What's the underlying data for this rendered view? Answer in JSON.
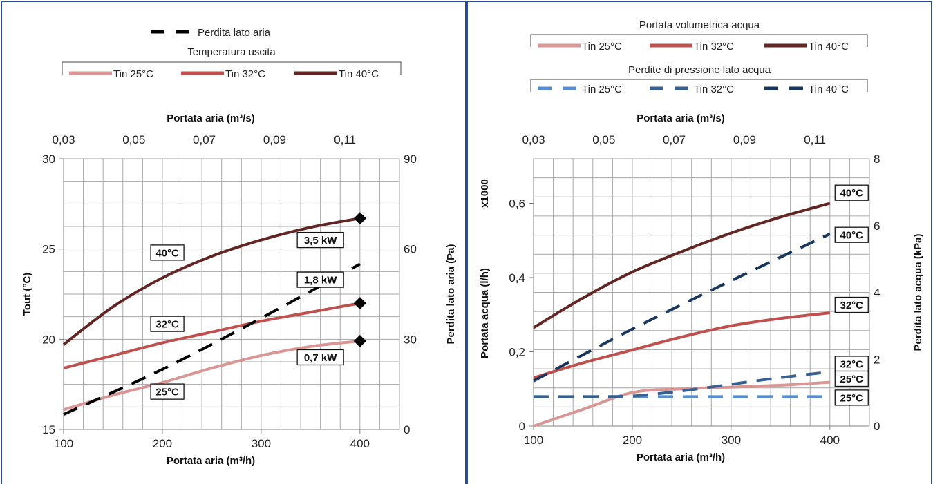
{
  "chart_data": [
    {
      "type": "line",
      "panel": "left",
      "xlabel": "Portata aria (m³/h)",
      "x2label": "Portata aria (m³/s)",
      "ylabel": "Tout (°C)",
      "y2label": "Perdita lato aria (Pa)",
      "xlim": [
        100,
        440
      ],
      "ylim": [
        15,
        30
      ],
      "y2lim": [
        0,
        90
      ],
      "x_ticks": [
        100,
        200,
        300,
        400
      ],
      "x_tick_labels": [
        "100",
        "200",
        "300",
        "400"
      ],
      "y_ticks": [
        15,
        20,
        25,
        30
      ],
      "y_tick_labels": [
        "15",
        "20",
        "25",
        "30"
      ],
      "y2_ticks": [
        0,
        30,
        60,
        90
      ],
      "y2_tick_labels": [
        "0",
        "30",
        "60",
        "90"
      ],
      "x2_ticks": [
        0.03,
        0.05,
        0.07,
        0.09,
        0.11
      ],
      "x2_tick_labels": [
        "0,03",
        "0,05",
        "0,07",
        "0,09",
        "0,11"
      ],
      "legend": {
        "top_entry": "Perdita lato aria",
        "group_title": "Temperatura uscita",
        "entries": [
          "Tin 25°C",
          "Tin 32°C",
          "Tin 40°C"
        ]
      },
      "series": [
        {
          "name": "Tin 25°C",
          "axis": "left",
          "color": "#d99694",
          "dash": false,
          "x": [
            100,
            150,
            200,
            250,
            300,
            350,
            400
          ],
          "y": [
            16.1,
            16.9,
            17.6,
            18.4,
            19.1,
            19.6,
            19.9
          ]
        },
        {
          "name": "Tin 32°C",
          "axis": "left",
          "color": "#c0504d",
          "dash": false,
          "x": [
            100,
            150,
            200,
            250,
            300,
            350,
            400
          ],
          "y": [
            18.4,
            19.1,
            19.8,
            20.4,
            21.0,
            21.5,
            22.0
          ]
        },
        {
          "name": "Tin 40°C",
          "axis": "left",
          "color": "#632523",
          "dash": false,
          "x": [
            100,
            150,
            200,
            250,
            300,
            350,
            400
          ],
          "y": [
            19.7,
            21.8,
            23.4,
            24.6,
            25.5,
            26.2,
            26.7
          ]
        },
        {
          "name": "Perdita lato aria",
          "axis": "right",
          "color": "#000000",
          "dash": true,
          "x": [
            100,
            200,
            300,
            400
          ],
          "y": [
            5,
            20,
            37,
            55
          ]
        }
      ],
      "markers": [
        {
          "x": 400,
          "y": 26.7
        },
        {
          "x": 400,
          "y": 22.0
        },
        {
          "x": 400,
          "y": 19.9
        }
      ],
      "annotations": [
        {
          "text": "40°C",
          "x": 205,
          "y": 24.8
        },
        {
          "text": "32°C",
          "x": 205,
          "y": 20.85
        },
        {
          "text": "25°C",
          "x": 205,
          "y": 17.1
        },
        {
          "text": "3,5 kW",
          "x": 360,
          "y": 25.5
        },
        {
          "text": "1,8 kW",
          "x": 360,
          "y": 23.3
        },
        {
          "text": "0,7 kW",
          "x": 360,
          "y": 19.0
        }
      ]
    },
    {
      "type": "line",
      "panel": "right",
      "xlabel": "Portata aria (m³/h)",
      "x2label": "Portata aria (m³/s)",
      "ylabel": "Portata acqua (l/h)",
      "ylabel_multiplier": "x1000",
      "y2label": "Perdita lato acqua (kPa)",
      "xlim": [
        100,
        440
      ],
      "ylim": [
        0,
        0.72
      ],
      "y2lim": [
        0,
        8
      ],
      "x_ticks": [
        100,
        200,
        300,
        400
      ],
      "x_tick_labels": [
        "100",
        "200",
        "300",
        "400"
      ],
      "y_ticks": [
        0,
        0.2,
        0.4,
        0.6
      ],
      "y_tick_labels": [
        "0",
        "0,2",
        "0,4",
        "0,6"
      ],
      "y2_ticks": [
        0,
        2,
        4,
        6,
        8
      ],
      "y2_tick_labels": [
        "0",
        "2",
        "4",
        "6",
        "8"
      ],
      "x2_ticks": [
        0.03,
        0.05,
        0.07,
        0.09,
        0.11
      ],
      "x2_tick_labels": [
        "0,03",
        "0,05",
        "0,07",
        "0,09",
        "0,11"
      ],
      "legend": {
        "group1_title": "Portata volumetrica acqua",
        "group1_entries": [
          "Tin 25°C",
          "Tin 32°C",
          "Tin 40°C"
        ],
        "group2_title": "Perdite di pressione lato acqua",
        "group2_entries": [
          "Tin 25°C",
          "Tin 32°C",
          "Tin 40°C"
        ]
      },
      "series": [
        {
          "name": "Tin 25°C",
          "group": "Portata volumetrica acqua",
          "axis": "left",
          "color": "#d99694",
          "dash": false,
          "x": [
            100,
            150,
            200,
            250,
            300,
            350,
            400
          ],
          "y": [
            0.0,
            0.045,
            0.09,
            0.1,
            0.105,
            0.11,
            0.118
          ]
        },
        {
          "name": "Tin 32°C",
          "group": "Portata volumetrica acqua",
          "axis": "left",
          "color": "#c0504d",
          "dash": false,
          "x": [
            100,
            150,
            200,
            250,
            300,
            350,
            400
          ],
          "y": [
            0.13,
            0.17,
            0.205,
            0.24,
            0.27,
            0.29,
            0.305
          ]
        },
        {
          "name": "Tin 40°C",
          "group": "Portata volumetrica acqua",
          "axis": "left",
          "color": "#632523",
          "dash": false,
          "x": [
            100,
            150,
            200,
            250,
            300,
            350,
            400
          ],
          "y": [
            0.265,
            0.345,
            0.415,
            0.47,
            0.52,
            0.563,
            0.6
          ]
        },
        {
          "name": "Tin 25°C",
          "group": "Perdite di pressione lato acqua",
          "axis": "right",
          "color": "#558ed5",
          "dash": true,
          "x": [
            100,
            200,
            300,
            400
          ],
          "y": [
            0.88,
            0.88,
            0.88,
            0.88
          ]
        },
        {
          "name": "Tin 32°C",
          "group": "Perdite di pressione lato acqua",
          "axis": "right",
          "color": "#376092",
          "dash": true,
          "x": [
            100,
            150,
            200,
            250,
            300,
            350,
            400
          ],
          "y": [
            0.88,
            0.88,
            0.9,
            1.05,
            1.25,
            1.45,
            1.62
          ]
        },
        {
          "name": "Tin 40°C",
          "group": "Perdite di pressione lato acqua",
          "axis": "right",
          "color": "#17375e",
          "dash": true,
          "x": [
            100,
            200,
            300,
            400
          ],
          "y": [
            1.35,
            2.9,
            4.35,
            5.75
          ]
        }
      ],
      "annotations": [
        {
          "text": "40°C",
          "x": 422,
          "y": 0.6285
        },
        {
          "text": "40°C",
          "x": 422,
          "y": 0.515
        },
        {
          "text": "32°C",
          "x": 422,
          "y": 0.3265
        },
        {
          "text": "32°C",
          "x": 422,
          "y": 0.1675
        },
        {
          "text": "25°C",
          "x": 422,
          "y": 0.1275
        },
        {
          "text": "25°C",
          "x": 422,
          "y": 0.0765
        }
      ]
    }
  ]
}
